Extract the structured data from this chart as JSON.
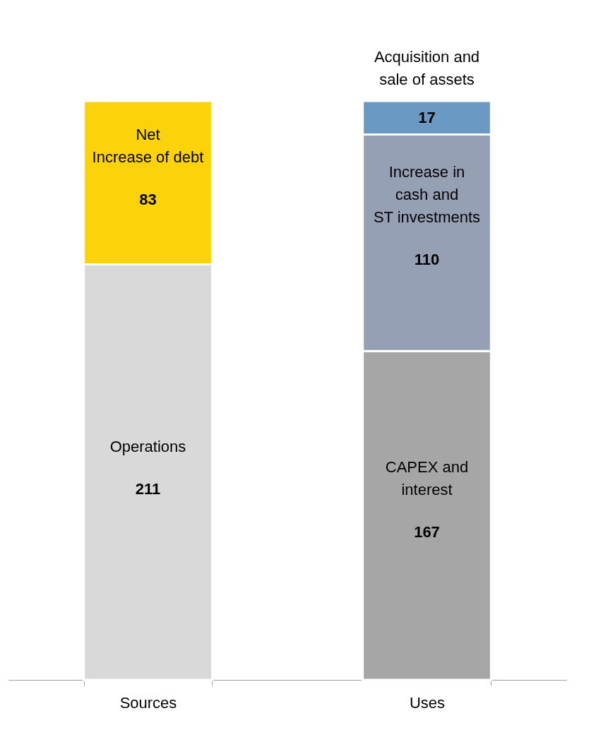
{
  "chart_data": {
    "type": "bar",
    "stacked": true,
    "categories": [
      "Sources",
      "Uses"
    ],
    "data_labels": true,
    "legend": false,
    "grid": false,
    "series": [
      {
        "name": "Operations",
        "color": "#d9d9d9",
        "values": [
          211,
          null
        ]
      },
      {
        "name": "Net\nIncrease of debt",
        "color": "#fcd20a",
        "values": [
          83,
          null
        ]
      },
      {
        "name": "CAPEX and\ninterest",
        "color": "#a6a6a6",
        "values": [
          null,
          167
        ]
      },
      {
        "name": "Increase in\ncash and\nST investments",
        "color": "#96a0b4",
        "values": [
          null,
          110
        ]
      },
      {
        "name": "Acquisition and\nsale of assets",
        "color": "#6a9ac4",
        "values": [
          null,
          17
        ]
      }
    ]
  }
}
